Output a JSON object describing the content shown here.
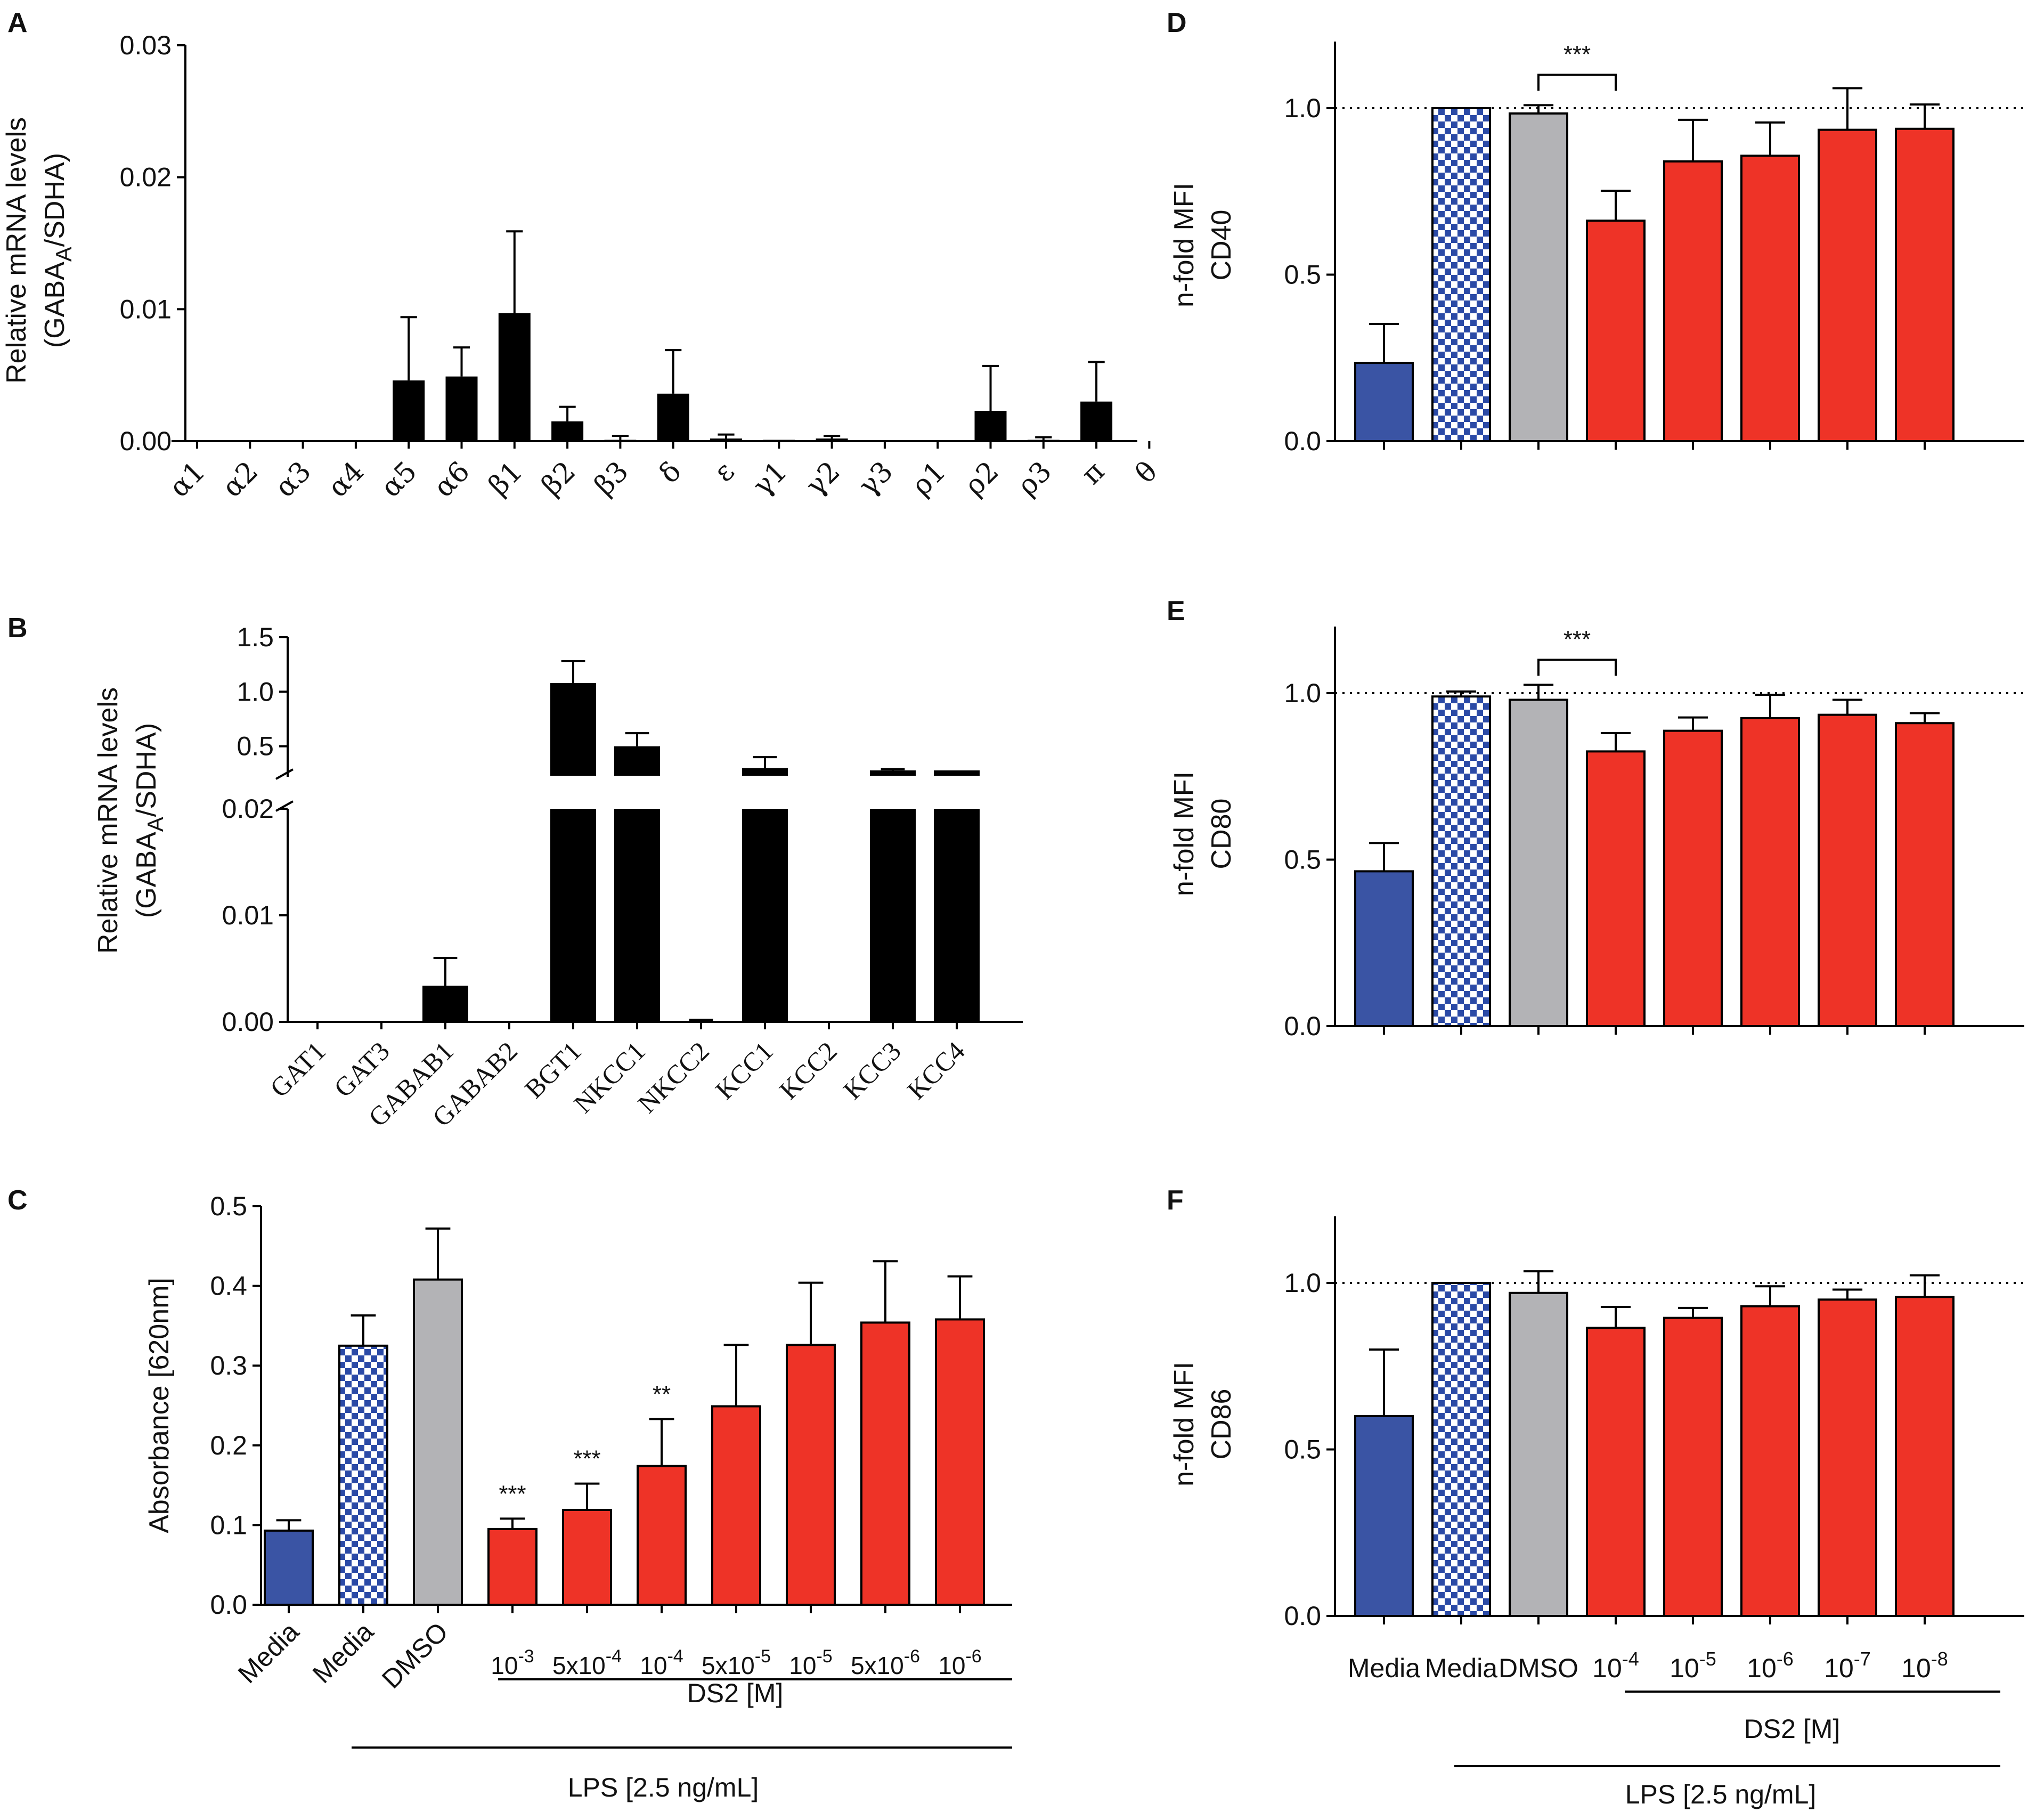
{
  "colors": {
    "black": "#000000",
    "blue": "#3a54a4",
    "checker": "#2b4aa6",
    "grey": "#b3b3b6",
    "red": "#ee3327"
  },
  "chart_data": [
    {
      "id": "A",
      "panel_label": "A",
      "type": "bar",
      "ylabel_line1": "Relative mRNA levels",
      "ylabel_line2_pre": "(GABA",
      "ylabel_line2_sub": "A",
      "ylabel_line2_post": "/SDHA)",
      "ylim": [
        0,
        0.03
      ],
      "yticks": [
        {
          "value": 0,
          "label": "0.00"
        },
        {
          "value": 0.01,
          "label": "0.01"
        },
        {
          "value": 0.02,
          "label": "0.02"
        },
        {
          "value": 0.03,
          "label": "0.03"
        }
      ],
      "categories": [
        "α1",
        "α2",
        "α3",
        "α4",
        "α5",
        "α6",
        "β1",
        "β2",
        "β3",
        "δ",
        "ε",
        "γ1",
        "γ2",
        "γ3",
        "ρ1",
        "ρ2",
        "ρ3",
        "π",
        "θ"
      ],
      "values": [
        0,
        0,
        0,
        0,
        0.0046,
        0.0049,
        0.0097,
        0.0015,
        0.0001,
        0.0036,
        0.0002,
        0.0001,
        0.0002,
        0,
        0,
        0.0023,
        0.0001,
        0.003,
        0
      ],
      "errors": [
        0,
        0,
        0,
        0,
        0.0048,
        0.0022,
        0.0062,
        0.0011,
        0.0003,
        0.0033,
        0.0003,
        0,
        0.0002,
        0,
        0,
        0.0034,
        0.0002,
        0.003,
        0
      ]
    },
    {
      "id": "B",
      "panel_label": "B",
      "type": "bar",
      "ylabel_line1": "Relative mRNA levels",
      "ylabel_line2_pre": "(GABA",
      "ylabel_line2_sub": "A",
      "ylabel_line2_post": "/SDHA)",
      "broken_axis": true,
      "lower_ylim": [
        0,
        0.02
      ],
      "upper_ylim": [
        0.22,
        1.5
      ],
      "yticks_lower": [
        {
          "value": 0,
          "label": "0.00"
        },
        {
          "value": 0.01,
          "label": "0.01"
        },
        {
          "value": 0.02,
          "label": "0.02"
        }
      ],
      "yticks_upper": [
        {
          "value": 0.5,
          "label": "0.5"
        },
        {
          "value": 1.0,
          "label": "1.0"
        },
        {
          "value": 1.5,
          "label": "1.5"
        }
      ],
      "categories": [
        "GAT1",
        "GAT3",
        "GABAB1",
        "GABAB2",
        "BGT1",
        "NKCC1",
        "NKCC2",
        "KCC1",
        "KCC2",
        "KCC3",
        "KCC4"
      ],
      "values": [
        0,
        0,
        0.0034,
        0,
        1.08,
        0.5,
        0.0001,
        0.3,
        0,
        0.2,
        0.2
      ],
      "errors": [
        0,
        0,
        0.0026,
        0,
        0.2,
        0.12,
        0.0001,
        0.1,
        0,
        0.09,
        0.04
      ]
    },
    {
      "id": "C",
      "panel_label": "C",
      "type": "bar",
      "ylabel": "Absorbance [620nm]",
      "ylim": [
        0,
        0.5
      ],
      "yticks": [
        {
          "value": 0,
          "label": "0.0"
        },
        {
          "value": 0.1,
          "label": "0.1"
        },
        {
          "value": 0.2,
          "label": "0.2"
        },
        {
          "value": 0.3,
          "label": "0.3"
        },
        {
          "value": 0.4,
          "label": "0.4"
        },
        {
          "value": 0.5,
          "label": "0.5"
        }
      ],
      "categories": [
        {
          "base": "Media",
          "exp": ""
        },
        {
          "base": "Media",
          "exp": ""
        },
        {
          "base": "DMSO",
          "exp": ""
        },
        {
          "base": "10",
          "exp": "-3"
        },
        {
          "base": "5x10",
          "exp": "-4"
        },
        {
          "base": "10",
          "exp": "-4"
        },
        {
          "base": "5x10",
          "exp": "-5"
        },
        {
          "base": "10",
          "exp": "-5"
        },
        {
          "base": "5x10",
          "exp": "-6"
        },
        {
          "base": "10",
          "exp": "-6"
        }
      ],
      "values": [
        0.093,
        0.325,
        0.408,
        0.095,
        0.119,
        0.174,
        0.249,
        0.326,
        0.354,
        0.358
      ],
      "errors": [
        0.013,
        0.038,
        0.064,
        0.013,
        0.033,
        0.059,
        0.077,
        0.078,
        0.077,
        0.054
      ],
      "fills": [
        "blue",
        "checker",
        "grey",
        "red",
        "red",
        "red",
        "red",
        "red",
        "red",
        "red"
      ],
      "significance": [
        {
          "index": 3,
          "label": "***"
        },
        {
          "index": 4,
          "label": "***"
        },
        {
          "index": 5,
          "label": "**"
        }
      ],
      "group_labels": {
        "ds2": "DS2 [M]",
        "lps": "LPS [2.5 ng/mL]"
      }
    },
    {
      "id": "D",
      "panel_label": "D",
      "type": "bar",
      "ylabel_line1": "n-fold MFI",
      "ylabel_line2": "CD40",
      "ylim": [
        0,
        1.2
      ],
      "yticks": [
        {
          "value": 0,
          "label": "0.0"
        },
        {
          "value": 0.5,
          "label": "0.5"
        },
        {
          "value": 1.0,
          "label": "1.0"
        }
      ],
      "reference_line": 1.0,
      "values": [
        0.235,
        1.0,
        0.984,
        0.662,
        0.84,
        0.857,
        0.935,
        0.938
      ],
      "errors": [
        0.117,
        0,
        0.025,
        0.09,
        0.125,
        0.1,
        0.125,
        0.073
      ],
      "fills": [
        "blue",
        "checker",
        "grey",
        "red",
        "red",
        "red",
        "red",
        "red"
      ],
      "bracket": {
        "from": 2,
        "to": 3,
        "label": "***"
      }
    },
    {
      "id": "E",
      "panel_label": "E",
      "type": "bar",
      "ylabel_line1": "n-fold MFI",
      "ylabel_line2": "CD80",
      "ylim": [
        0,
        1.2
      ],
      "yticks": [
        {
          "value": 0,
          "label": "0.0"
        },
        {
          "value": 0.5,
          "label": "0.5"
        },
        {
          "value": 1.0,
          "label": "1.0"
        }
      ],
      "reference_line": 1.0,
      "values": [
        0.465,
        0.99,
        0.98,
        0.825,
        0.887,
        0.925,
        0.935,
        0.91
      ],
      "errors": [
        0.085,
        0.015,
        0.045,
        0.055,
        0.04,
        0.07,
        0.045,
        0.03
      ],
      "fills": [
        "blue",
        "checker",
        "grey",
        "red",
        "red",
        "red",
        "red",
        "red"
      ],
      "bracket": {
        "from": 2,
        "to": 3,
        "label": "***"
      }
    },
    {
      "id": "F",
      "panel_label": "F",
      "type": "bar",
      "ylabel_line1": "n-fold MFI",
      "ylabel_line2": "CD86",
      "ylim": [
        0,
        1.2
      ],
      "yticks": [
        {
          "value": 0,
          "label": "0.0"
        },
        {
          "value": 0.5,
          "label": "0.5"
        },
        {
          "value": 1.0,
          "label": "1.0"
        }
      ],
      "reference_line": 1.0,
      "categories": [
        {
          "base": "Media",
          "exp": ""
        },
        {
          "base": "Media",
          "exp": ""
        },
        {
          "base": "DMSO",
          "exp": ""
        },
        {
          "base": "10",
          "exp": "-4"
        },
        {
          "base": "10",
          "exp": "-5"
        },
        {
          "base": "10",
          "exp": "-6"
        },
        {
          "base": "10",
          "exp": "-7"
        },
        {
          "base": "10",
          "exp": "-8"
        }
      ],
      "values": [
        0.6,
        1.0,
        0.97,
        0.865,
        0.895,
        0.93,
        0.95,
        0.958
      ],
      "errors": [
        0.2,
        0,
        0.065,
        0.063,
        0.03,
        0.06,
        0.03,
        0.065
      ],
      "fills": [
        "blue",
        "checker",
        "grey",
        "red",
        "red",
        "red",
        "red",
        "red"
      ],
      "group_labels": {
        "ds2": "DS2 [M]",
        "lps": "LPS [2.5 ng/mL]"
      }
    }
  ]
}
